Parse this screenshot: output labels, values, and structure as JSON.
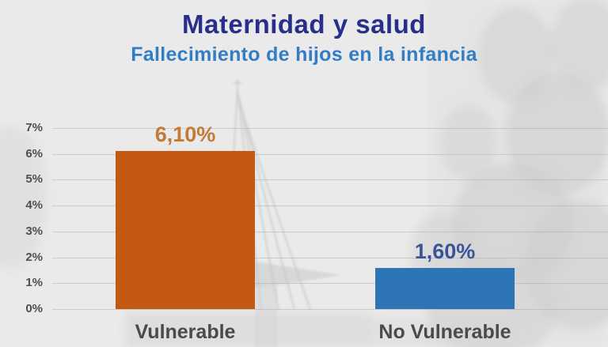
{
  "header": {
    "title": "Maternidad y salud",
    "subtitle": "Fallecimiento de hijos en la infancia"
  },
  "chart_data": {
    "type": "bar",
    "title": "Maternidad y salud",
    "subtitle": "Fallecimiento de hijos en la infancia",
    "categories": [
      "Vulnerable",
      "No Vulnerable"
    ],
    "values": [
      6.1,
      1.6
    ],
    "value_labels": [
      "6,10%",
      "1,60%"
    ],
    "xlabel": "",
    "ylabel": "",
    "ylim": [
      0,
      7
    ],
    "yticks": [
      0,
      1,
      2,
      3,
      4,
      5,
      6,
      7
    ],
    "ytick_labels": [
      "0%",
      "1%",
      "2%",
      "3%",
      "4%",
      "5%",
      "6%",
      "7%"
    ],
    "grid": true,
    "legend": false,
    "bar_colors": [
      "#c45a11",
      "#2e75b6"
    ],
    "value_label_colors": [
      "#c27a35",
      "#3b5498"
    ]
  },
  "style": {
    "background": "#eaeaeb",
    "title_color": "#282f8a",
    "subtitle_color": "#327dc4",
    "tick_label_color": "#4f4f4f",
    "category_label_color": "#4a4a4a",
    "gridline_color": "rgba(150,150,150,0.35)"
  }
}
